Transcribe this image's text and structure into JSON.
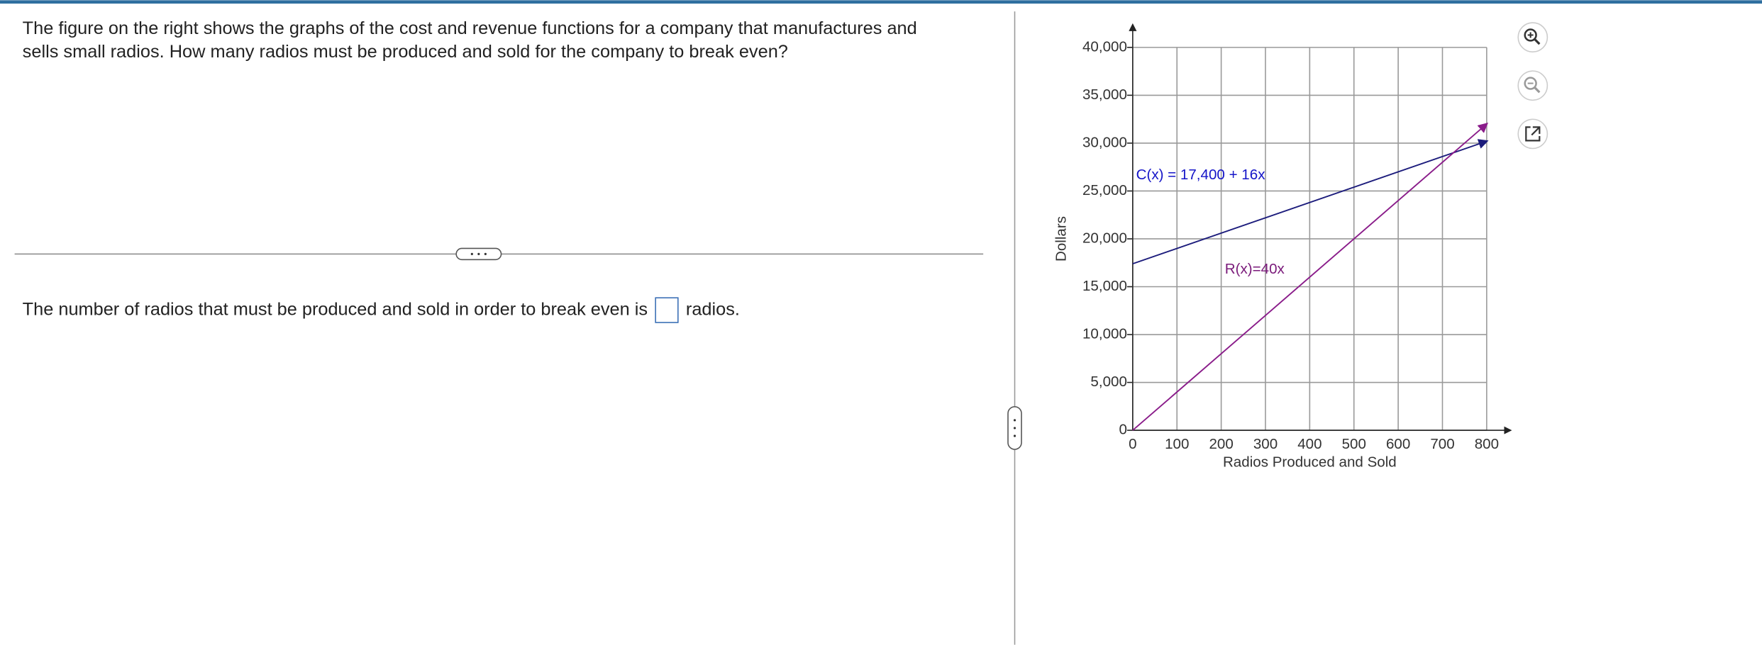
{
  "question": "The figure on the right shows the graphs of the cost and revenue functions for a company that manufactures and sells small radios. How many radios must be produced and sold for the company to break even?",
  "answer": {
    "prefix": "The number of radios that must be produced and sold in order to break even is",
    "suffix": "radios."
  },
  "chart_data": {
    "type": "line",
    "xlabel": "Radios Produced and Sold",
    "ylabel": "Dollars",
    "xlim": [
      0,
      800
    ],
    "ylim": [
      0,
      40000
    ],
    "xticks": [
      0,
      100,
      200,
      300,
      400,
      500,
      600,
      700,
      800
    ],
    "yticks": [
      0,
      {
        "value": 5000,
        "label": "5,000"
      },
      {
        "value": 10000,
        "label": "10,000"
      },
      {
        "value": 15000,
        "label": "15,000"
      },
      {
        "value": 20000,
        "label": "20,000"
      },
      {
        "value": 25000,
        "label": "25,000"
      },
      {
        "value": 30000,
        "label": "30,000"
      },
      {
        "value": 35000,
        "label": "35,000"
      },
      {
        "value": 40000,
        "label": "40,000"
      }
    ],
    "grid": true,
    "series": [
      {
        "color": "#1c1c7c",
        "x": [
          0,
          800
        ],
        "values": [
          17400,
          30200
        ]
      },
      {
        "color": "#8a1c8a",
        "x": [
          0,
          800
        ],
        "values": [
          0,
          32000
        ]
      }
    ],
    "annotations": [
      {
        "text": "C(x) = 17,400 + 16x",
        "color": "#1515c8"
      },
      {
        "text": "R(x)=40x",
        "color": "#7a1a7a"
      }
    ]
  }
}
